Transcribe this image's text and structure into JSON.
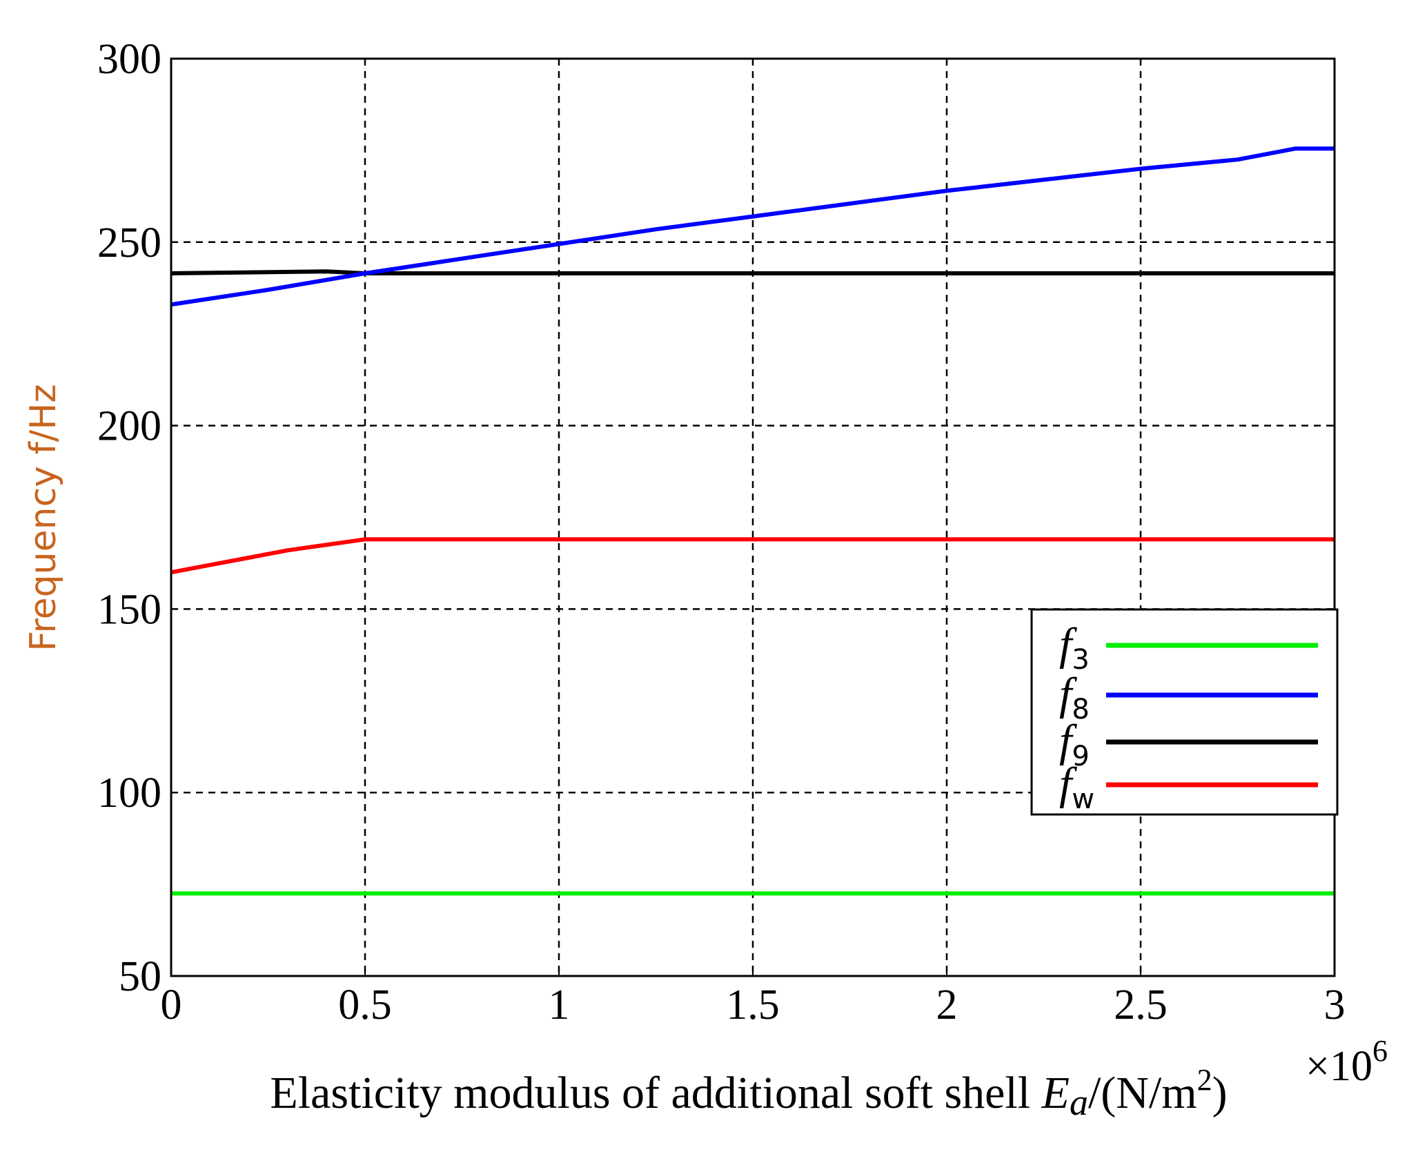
{
  "chart_data": {
    "type": "line",
    "title": "",
    "xlabel": {
      "prefix": "Elasticity modulus of additional soft shell ",
      "symbol": "E",
      "symbol_sub": "a",
      "unit_pre": "/(N/m",
      "unit_sup": "2",
      "unit_post": ")"
    },
    "ylabel": "Frequency f/Hz",
    "x_multiplier": {
      "base": "×10",
      "exp": "6"
    },
    "xlim": [
      0,
      3
    ],
    "ylim": [
      50,
      300
    ],
    "xticks": [
      0,
      0.5,
      1,
      1.5,
      2,
      2.5,
      3
    ],
    "xtick_labels": [
      "0",
      "0.5",
      "1",
      "1.5",
      "2",
      "2.5",
      "3"
    ],
    "yticks": [
      50,
      100,
      150,
      200,
      250,
      300
    ],
    "ytick_labels": [
      "50",
      "100",
      "150",
      "200",
      "250",
      "300"
    ],
    "grid": true,
    "legend_position": "right",
    "series": [
      {
        "name": "f",
        "sub": "3",
        "color": "#00ee00",
        "x": [
          0,
          3
        ],
        "y": [
          72.5,
          72.5
        ]
      },
      {
        "name": "f",
        "sub": "8",
        "color": "#0000ff",
        "x": [
          0,
          0.25,
          0.5,
          0.75,
          1,
          1.25,
          1.5,
          1.75,
          2,
          2.25,
          2.5,
          2.75,
          2.9,
          3
        ],
        "y": [
          233,
          237,
          241.5,
          245.5,
          249.5,
          253.5,
          257,
          260.5,
          264,
          267,
          270,
          272.5,
          275.5,
          275.5
        ]
      },
      {
        "name": "f",
        "sub": "9",
        "color": "#000000",
        "x": [
          0,
          0.4,
          0.5,
          3
        ],
        "y": [
          241.5,
          242,
          241.5,
          241.5
        ]
      },
      {
        "name": "f",
        "sub": "w",
        "color": "#ff0000",
        "x": [
          0,
          0.1,
          0.2,
          0.3,
          0.4,
          0.5,
          3
        ],
        "y": [
          160,
          162,
          164,
          166,
          167.5,
          169,
          169
        ]
      }
    ]
  }
}
